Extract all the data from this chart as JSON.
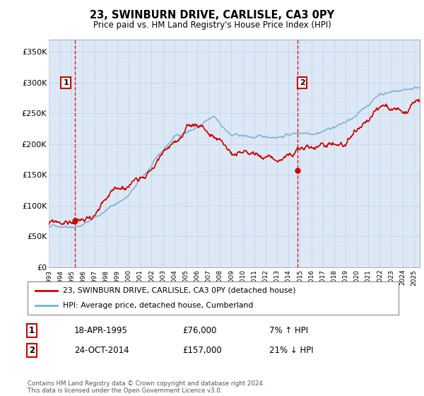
{
  "title": "23, SWINBURN DRIVE, CARLISLE, CA3 0PY",
  "subtitle": "Price paid vs. HM Land Registry's House Price Index (HPI)",
  "ylim": [
    0,
    370000
  ],
  "yticks": [
    0,
    50000,
    100000,
    150000,
    200000,
    250000,
    300000,
    350000
  ],
  "ytick_labels": [
    "£0",
    "£50K",
    "£100K",
    "£150K",
    "£200K",
    "£250K",
    "£300K",
    "£350K"
  ],
  "sale1": {
    "date_num": 1995.29,
    "price": 76000,
    "label": "1",
    "hpi_pct": "7% ↑ HPI",
    "date_str": "18-APR-1995",
    "price_str": "£76,000"
  },
  "sale2": {
    "date_num": 2014.81,
    "price": 157000,
    "label": "2",
    "hpi_pct": "21% ↓ HPI",
    "date_str": "24-OCT-2014",
    "price_str": "£157,000"
  },
  "legend_line1": "23, SWINBURN DRIVE, CARLISLE, CA3 0PY (detached house)",
  "legend_line2": "HPI: Average price, detached house, Cumberland",
  "footer": "Contains HM Land Registry data © Crown copyright and database right 2024.\nThis data is licensed under the Open Government Licence v3.0.",
  "hpi_color": "#7ab0d4",
  "price_color": "#cc0000",
  "bg_hatch_color": "#dce8f5",
  "bg_white_color": "#eef4fb",
  "vline_color": "#cc0000",
  "grid_color": "#c8d8e8",
  "label_box_color": "#cc0000",
  "xmin": 1993,
  "xmax": 2025.5
}
